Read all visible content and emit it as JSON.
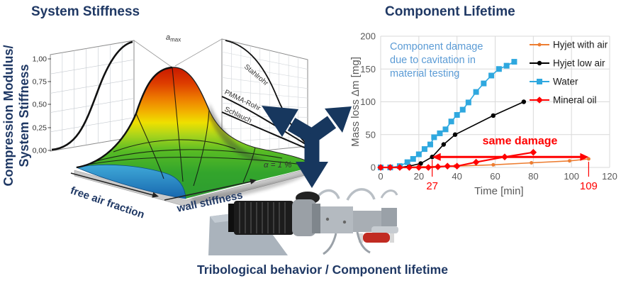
{
  "theme": {
    "navy": "#1F3864",
    "arrow_color": "#17375E",
    "note_blue": "#5B9BD5",
    "axis_gray": "#595959",
    "grid_gray": "#D9D9D9",
    "red": "#FF0000"
  },
  "left_panel": {
    "title": "System Stiffness",
    "ylabel_line1": "Compression Modulus/",
    "ylabel_line2": "System Stiffness",
    "xlabel_left": "free air fraction",
    "xlabel_right": "wall stiffness",
    "peak_label": "a",
    "peak_label_sub": "max",
    "alpha_note": "α = 1 %",
    "wall_curve_labels": [
      "Stahlrohr",
      "PMMA-Rohr",
      "Schlauch"
    ]
  },
  "right_panel": {
    "title": "Component Lifetime"
  },
  "bottom": {
    "caption": "Tribological behavior / Component lifetime"
  },
  "chart_data": [
    {
      "type": "surface",
      "title": "System Stiffness",
      "ylabel": "Compression Modulus/ System Stiffness",
      "y_tick_labels": [
        "1,00",
        "0,75",
        "0,50",
        "0,25",
        "0,00"
      ],
      "y_tick_values": [
        1.0,
        0.75,
        0.5,
        0.25,
        0.0
      ],
      "x_axis_labels": [
        "free air fraction",
        "wall stiffness"
      ],
      "peak_annotation": "a_max",
      "condition_annotation": "α = 1 %",
      "right_wall_curves": [
        "Stahlrohr",
        "PMMA-Rohr",
        "Schlauch"
      ],
      "description": "Bell-shaped normalized compression-modulus surface over free air fraction and wall stiffness; maximum a_max at intermediate values; sigmoid cross-section curve on rear wall; decreasing curves for Stahlrohr, PMMA-Rohr and Schlauch on right wall at α = 1 %."
    },
    {
      "type": "line",
      "title": "Component Lifetime",
      "xlabel": "Time  [min]",
      "ylabel": "Mass loss  Δm [mg]",
      "xlim": [
        0,
        120
      ],
      "ylim": [
        0,
        200
      ],
      "x_ticks": [
        0,
        20,
        40,
        60,
        80,
        100,
        120
      ],
      "y_ticks": [
        0,
        50,
        100,
        150,
        200
      ],
      "grid": true,
      "legend_position": "right",
      "series": [
        {
          "name": "Hyjet with air",
          "color": "#ED7D31",
          "marker": "dot",
          "points": [
            [
              0,
              0
            ],
            [
              10,
              0
            ],
            [
              20,
              1
            ],
            [
              39,
              2
            ],
            [
              59,
              4
            ],
            [
              79,
              7
            ],
            [
              99,
              10
            ],
            [
              109,
              13
            ]
          ]
        },
        {
          "name": "Hyjet low air",
          "color": "#000000",
          "marker": "circle",
          "points": [
            [
              0,
              0
            ],
            [
              5,
              0
            ],
            [
              10,
              0
            ],
            [
              15,
              2
            ],
            [
              21,
              6
            ],
            [
              27,
              16
            ],
            [
              33,
              35
            ],
            [
              39,
              50
            ],
            [
              59,
              79
            ],
            [
              75,
              100
            ]
          ]
        },
        {
          "name": "Water",
          "color": "#2FA8DF",
          "marker": "square",
          "points": [
            [
              0,
              0
            ],
            [
              5,
              0
            ],
            [
              10,
              2
            ],
            [
              14,
              8
            ],
            [
              17,
              13
            ],
            [
              20,
              20
            ],
            [
              23,
              28
            ],
            [
              26,
              35
            ],
            [
              28,
              46
            ],
            [
              31,
              52
            ],
            [
              34,
              58
            ],
            [
              37,
              70
            ],
            [
              40,
              80
            ],
            [
              43,
              88
            ],
            [
              46,
              99
            ],
            [
              50,
              115
            ],
            [
              54,
              128
            ],
            [
              58,
              140
            ],
            [
              62,
              150
            ],
            [
              66,
              155
            ],
            [
              70,
              161
            ]
          ]
        },
        {
          "name": "Mineral oil",
          "color": "#FF0000",
          "marker": "diamond",
          "points": [
            [
              0,
              0
            ],
            [
              5,
              0
            ],
            [
              10,
              0
            ],
            [
              15,
              0
            ],
            [
              20,
              0
            ],
            [
              25,
              0
            ],
            [
              30,
              1
            ],
            [
              35,
              2
            ],
            [
              40,
              2
            ],
            [
              50,
              8
            ],
            [
              65,
              16
            ],
            [
              80,
              23
            ]
          ]
        }
      ],
      "annotations": {
        "note": {
          "lines": [
            "Component damage",
            "due to cavitation in",
            "material testing"
          ],
          "color": "#5B9BD5"
        },
        "same_damage": {
          "text": "same damage",
          "color": "#FF0000",
          "arrow_x_from": 27,
          "arrow_x_to": 109,
          "arrow_y": 16
        },
        "x_markers": [
          {
            "x": 27,
            "label": "27",
            "y_top": 16
          },
          {
            "x": 109,
            "label": "109",
            "y_top": 13
          }
        ]
      }
    }
  ]
}
